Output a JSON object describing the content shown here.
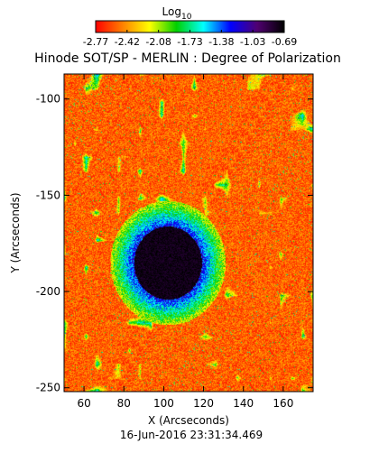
{
  "chart_data": {
    "type": "heatmap",
    "title": "Hinode SOT/SP - MERLIN : Degree of Polarization",
    "xlabel": "X (Arcseconds)",
    "ylabel": "Y (Arcseconds)",
    "timestamp": "16-Jun-2016 23:31:34.469",
    "xlim": [
      50,
      175
    ],
    "ylim": [
      -252,
      -87
    ],
    "x_ticks": [
      60,
      80,
      100,
      120,
      140,
      160
    ],
    "y_ticks": [
      -100,
      -150,
      -200,
      -250
    ],
    "colorbar": {
      "label_main": "Log",
      "label_sub": "10",
      "range": [
        -2.77,
        -0.69
      ],
      "tick_labels": [
        "-2.77",
        "-2.42",
        "-2.08",
        "-1.73",
        "-1.38",
        "-1.03",
        "-0.69"
      ],
      "colormap": [
        "#ff0000",
        "#ff8000",
        "#ffff00",
        "#00d000",
        "#00ffff",
        "#0000ff",
        "#500070",
        "#000000"
      ]
    },
    "sunspot": {
      "umbra_center": [
        102,
        -185
      ],
      "umbra_radius_x": [
        18,
        16
      ],
      "umbra_radius_y": [
        20,
        18
      ],
      "umbra_value": -0.75,
      "penumbra_value": -1.25,
      "background_value": -2.72
    }
  }
}
